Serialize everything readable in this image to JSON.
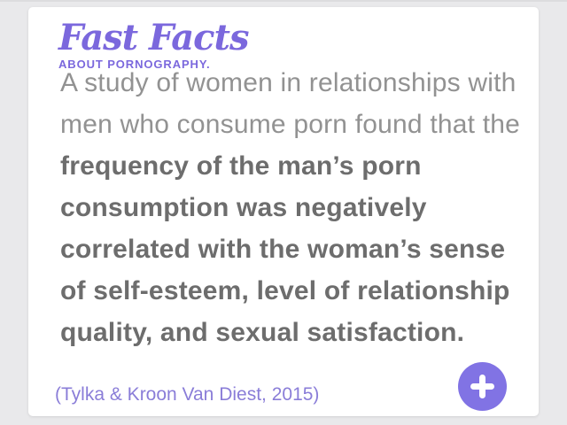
{
  "logo": {
    "title": "Fast Facts",
    "subtitle": "ABOUT PORNOGRAPHY."
  },
  "fact": {
    "intro": "A study of women in relationships with men who consume porn found that the ",
    "emphasis": "frequency of the man’s porn consumption was negatively correlated with the woman’s sense of self-esteem, level of relationship quality, and sexual satisfaction."
  },
  "citation": "(Tylka & Kroon Van Diest, 2015)",
  "fab": {
    "icon": "plus-icon"
  },
  "colors": {
    "brand_purple": "#7b68dd",
    "fab_purple": "#8173e4",
    "citation_purple": "#8a7dd8",
    "body_text_regular": "#929292",
    "body_text_bold": "#6d6d6d",
    "page_background": "#e9e9eb",
    "card_background": "#ffffff"
  }
}
